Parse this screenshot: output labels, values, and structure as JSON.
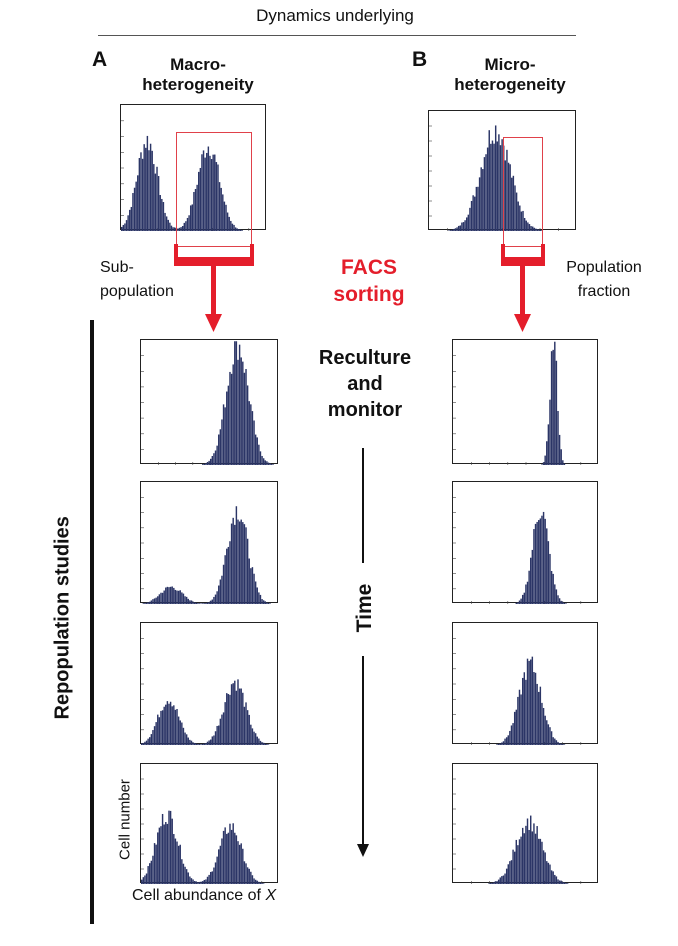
{
  "header": {
    "title": "Dynamics underlying"
  },
  "columns": {
    "a": {
      "letter": "A",
      "title": "Macro-\nheterogeneity",
      "selection_label": "Sub-\npopulation"
    },
    "b": {
      "letter": "B",
      "title": "Micro-\nheterogeneity",
      "selection_label": "Population\nfraction"
    }
  },
  "center": {
    "sorting_label": "FACS\nsorting",
    "reculture_label": "Reculture\nand\nmonitor",
    "time_label": "Time"
  },
  "side": {
    "repopulation_label": "Repopulation studies"
  },
  "axes": {
    "ylabel": "Cell number",
    "xlabel_prefix": "Cell abundance of ",
    "xlabel_var": "X"
  },
  "colors": {
    "bars": "#2b3566",
    "sort": "#e41e2b",
    "text": "#111111"
  },
  "histograms": {
    "a_top": [
      {
        "mu": 0.18,
        "sd": 0.07,
        "w": 0.72
      },
      {
        "mu": 0.6,
        "sd": 0.075,
        "w": 0.68
      }
    ],
    "b_top": [
      {
        "mu": 0.45,
        "sd": 0.1,
        "w": 0.85
      }
    ],
    "a_rows": [
      [
        {
          "mu": 0.7,
          "sd": 0.08,
          "w": 0.97
        }
      ],
      [
        {
          "mu": 0.22,
          "sd": 0.08,
          "w": 0.14
        },
        {
          "mu": 0.7,
          "sd": 0.075,
          "w": 0.78
        }
      ],
      [
        {
          "mu": 0.2,
          "sd": 0.075,
          "w": 0.38
        },
        {
          "mu": 0.68,
          "sd": 0.08,
          "w": 0.52
        }
      ],
      [
        {
          "mu": 0.19,
          "sd": 0.08,
          "w": 0.58
        },
        {
          "mu": 0.65,
          "sd": 0.08,
          "w": 0.48
        }
      ]
    ],
    "b_rows": [
      [
        {
          "mu": 0.69,
          "sd": 0.025,
          "w": 0.99
        }
      ],
      [
        {
          "mu": 0.6,
          "sd": 0.055,
          "w": 0.78
        }
      ],
      [
        {
          "mu": 0.53,
          "sd": 0.075,
          "w": 0.66
        }
      ],
      [
        {
          "mu": 0.52,
          "sd": 0.09,
          "w": 0.52
        }
      ]
    ]
  }
}
